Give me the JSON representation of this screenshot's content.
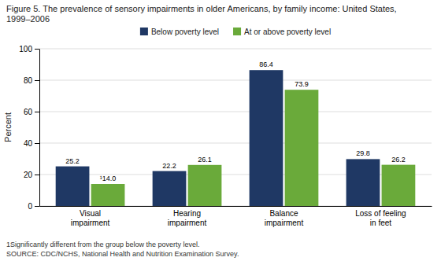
{
  "chart_data": {
    "type": "bar",
    "title": "Figure 5. The prevalence of sensory impairments in older Americans, by family income: United States, 1999–2006",
    "categories": [
      "Visual\nimpairment",
      "Hearing\nimpairment",
      "Balance\nimpairment",
      "Loss of feeling\nin feet"
    ],
    "series": [
      {
        "name": "Below poverty level",
        "color": "#1f3864",
        "values": [
          25.2,
          22.2,
          86.4,
          29.8
        ]
      },
      {
        "name": "At or above poverty level",
        "color": "#6aaa3a",
        "values": [
          14.0,
          26.1,
          73.9,
          26.2
        ],
        "value_labels": [
          "¹14.0",
          "26.1",
          "73.9",
          "26.2"
        ]
      }
    ],
    "ylabel": "Percent",
    "ylim": [
      0,
      100
    ],
    "yticks": [
      0,
      20,
      40,
      60,
      80,
      100
    ],
    "grid": true,
    "legend": "top",
    "data_labels": true,
    "annotations": [
      "1Significantly different from the group below the poverty level.",
      "SOURCE: CDC/NCHS, National Health and Nutrition Examination Survey."
    ]
  }
}
